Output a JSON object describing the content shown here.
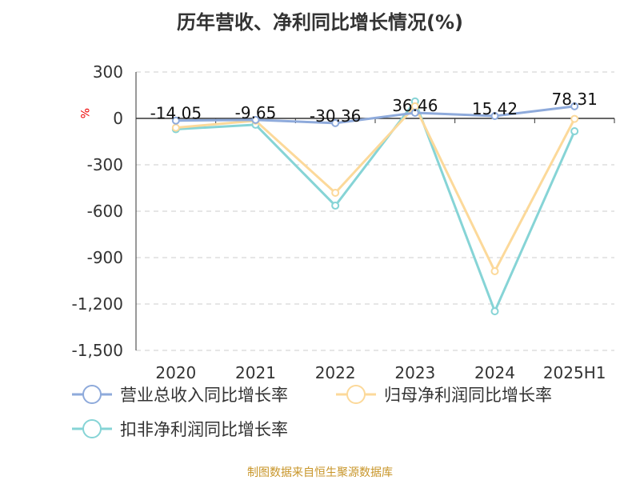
{
  "chart_data": {
    "type": "line",
    "title": "历年营收、净利同比增长情况(%)",
    "ylabel": "%",
    "categories": [
      "2020",
      "2021",
      "2022",
      "2023",
      "2024",
      "2025H1"
    ],
    "ylim": [
      -1500,
      300
    ],
    "yticks": [
      300,
      0,
      -300,
      -600,
      -900,
      -1200,
      -1500
    ],
    "ytick_labels": [
      "300",
      "0",
      "-300",
      "-600",
      "-900",
      "-1,200",
      "-1,500"
    ],
    "grid": true,
    "legend_position": "bottom",
    "series": [
      {
        "name": "营业总收入同比增长率",
        "color": "#8eaadb",
        "values": [
          -14.05,
          -9.65,
          -30.36,
          36.46,
          15.42,
          78.31
        ],
        "labels": [
          "-14.05",
          "-9.65",
          "-30.36",
          "36.46",
          "15.42",
          "78.31"
        ]
      },
      {
        "name": "归母净利润同比增长率",
        "color": "#fcd99a",
        "values": [
          -60,
          -15,
          -481,
          78,
          -988,
          -3
        ]
      },
      {
        "name": "扣非净利润同比增长率",
        "color": "#86d4d6",
        "values": [
          -70,
          -41,
          -564,
          110,
          -1247,
          -83
        ]
      }
    ]
  },
  "source": "制图数据来自恒生聚源数据库"
}
